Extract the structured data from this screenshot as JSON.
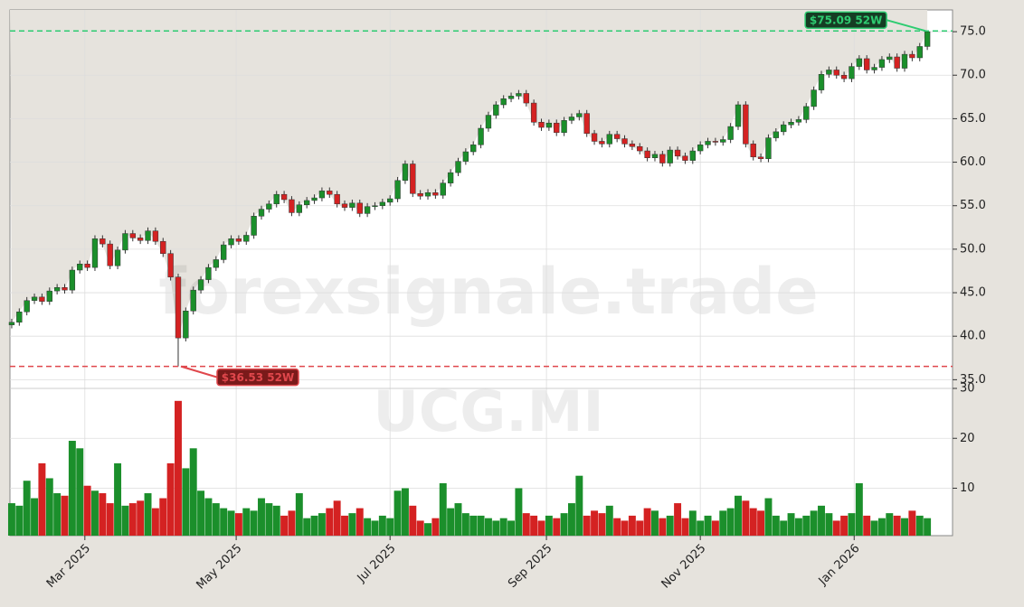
{
  "chart_data": {
    "type": "candlestick",
    "x": [
      0,
      3,
      6,
      9,
      12,
      15,
      18,
      21,
      24,
      27,
      30,
      33,
      36,
      39,
      42,
      45,
      48,
      51,
      54,
      57,
      60,
      63,
      66,
      69,
      72,
      75,
      78,
      81,
      84,
      87,
      90,
      93,
      96,
      99,
      102,
      105,
      108,
      111,
      114,
      117,
      120,
      123,
      126,
      129,
      132,
      135,
      138,
      141,
      144,
      147,
      150,
      153,
      156,
      159,
      162,
      165,
      168,
      171,
      174,
      177,
      180,
      183,
      186,
      189,
      192,
      195,
      198,
      201,
      204,
      207,
      210,
      213,
      216,
      219,
      222,
      225,
      228,
      231,
      234,
      237,
      240,
      243,
      246,
      249,
      252,
      255,
      258,
      261,
      264,
      267,
      270,
      273,
      276,
      279,
      282,
      285,
      288,
      291,
      294,
      297,
      300,
      303,
      306,
      309,
      312,
      315,
      318,
      321,
      324,
      327,
      330,
      333,
      336,
      339,
      342,
      345,
      348,
      351,
      354,
      357,
      360,
      363
    ],
    "open": [
      41.3,
      41.6,
      42.8,
      44.1,
      44.5,
      44.0,
      45.2,
      45.6,
      45.3,
      47.6,
      48.3,
      47.9,
      51.2,
      50.6,
      48.1,
      49.9,
      51.8,
      51.3,
      51.0,
      52.1,
      50.9,
      49.5,
      46.8,
      39.8,
      42.9,
      45.3,
      46.5,
      47.9,
      48.8,
      50.5,
      51.2,
      50.9,
      51.6,
      53.8,
      54.6,
      55.2,
      56.3,
      55.7,
      54.2,
      55.1,
      55.6,
      55.9,
      56.7,
      56.3,
      55.2,
      54.8,
      55.3,
      54.1,
      54.9,
      55.0,
      55.4,
      55.8,
      57.9,
      59.8,
      56.4,
      56.1,
      56.5,
      56.2,
      57.6,
      58.8,
      60.1,
      61.2,
      62.0,
      63.9,
      65.4,
      66.6,
      67.3,
      67.6,
      67.9,
      66.8,
      64.6,
      64.0,
      64.5,
      63.4,
      64.8,
      65.2,
      65.6,
      63.3,
      62.4,
      62.1,
      63.2,
      62.7,
      62.1,
      61.8,
      61.3,
      60.5,
      60.9,
      59.9,
      61.4,
      60.7,
      60.2,
      61.3,
      62.0,
      62.4,
      62.3,
      62.6,
      64.1,
      66.6,
      62.1,
      60.6,
      60.4,
      62.8,
      63.5,
      64.3,
      64.6,
      64.9,
      66.4,
      68.3,
      70.1,
      70.6,
      70.0,
      69.6,
      71.0,
      71.9,
      70.6,
      70.9,
      71.8,
      72.1,
      70.8,
      72.4,
      72.0,
      73.3
    ],
    "high": [
      42.0,
      43.2,
      44.5,
      44.9,
      44.9,
      45.6,
      46.0,
      46.0,
      48.0,
      48.7,
      48.7,
      51.6,
      51.6,
      51.0,
      50.3,
      52.2,
      52.2,
      51.7,
      52.5,
      52.5,
      51.3,
      49.9,
      47.2,
      43.3,
      45.7,
      46.9,
      48.3,
      49.2,
      50.9,
      51.6,
      51.6,
      52.0,
      54.2,
      55.0,
      55.6,
      56.7,
      56.7,
      56.1,
      55.5,
      56.0,
      56.3,
      57.1,
      57.1,
      56.7,
      55.6,
      55.7,
      55.7,
      55.3,
      55.4,
      55.8,
      56.2,
      58.3,
      60.2,
      60.2,
      56.8,
      56.9,
      56.9,
      58.0,
      59.2,
      60.5,
      61.6,
      62.4,
      64.3,
      65.8,
      67.0,
      67.7,
      68.0,
      68.3,
      68.3,
      67.2,
      65.0,
      64.9,
      64.9,
      65.2,
      65.6,
      66.0,
      66.0,
      63.7,
      62.8,
      63.6,
      63.6,
      63.1,
      62.5,
      62.2,
      61.7,
      61.3,
      61.3,
      61.8,
      61.8,
      61.1,
      61.7,
      62.4,
      62.8,
      62.8,
      63.0,
      64.5,
      67.0,
      67.0,
      62.5,
      61.0,
      63.2,
      63.9,
      64.7,
      65.0,
      65.3,
      66.8,
      68.7,
      70.5,
      71.0,
      71.0,
      70.4,
      71.4,
      72.3,
      72.3,
      71.3,
      72.2,
      72.5,
      72.5,
      72.8,
      72.8,
      73.7,
      75.09
    ],
    "low": [
      40.9,
      41.2,
      42.4,
      43.7,
      43.6,
      43.6,
      44.8,
      44.9,
      44.9,
      47.2,
      47.5,
      47.5,
      50.2,
      47.7,
      47.7,
      49.5,
      50.9,
      50.6,
      50.6,
      50.5,
      49.1,
      46.4,
      36.53,
      39.4,
      42.5,
      44.9,
      46.1,
      47.5,
      48.4,
      50.1,
      50.5,
      50.5,
      51.2,
      53.4,
      54.2,
      54.8,
      55.3,
      53.8,
      53.8,
      54.7,
      55.2,
      55.5,
      55.9,
      54.8,
      54.4,
      54.4,
      53.7,
      53.7,
      54.5,
      54.6,
      55.0,
      55.4,
      57.5,
      56.0,
      55.7,
      55.7,
      55.8,
      55.8,
      57.2,
      58.4,
      59.7,
      60.8,
      61.6,
      63.5,
      65.0,
      66.2,
      66.9,
      67.2,
      66.4,
      64.2,
      63.6,
      63.6,
      63.0,
      63.0,
      64.4,
      64.8,
      62.9,
      62.0,
      61.7,
      61.7,
      62.3,
      61.7,
      61.4,
      60.9,
      60.1,
      60.1,
      59.5,
      59.5,
      60.3,
      59.8,
      59.8,
      60.9,
      61.6,
      61.9,
      61.9,
      62.2,
      63.7,
      61.7,
      60.2,
      60.0,
      60.0,
      62.4,
      63.1,
      63.9,
      64.2,
      64.5,
      66.0,
      67.9,
      69.7,
      69.6,
      69.2,
      69.2,
      70.6,
      70.2,
      70.2,
      70.5,
      71.4,
      70.4,
      70.4,
      71.6,
      71.6,
      72.9
    ],
    "close": [
      41.6,
      42.8,
      44.1,
      44.5,
      44.0,
      45.2,
      45.6,
      45.3,
      47.6,
      48.3,
      47.9,
      51.2,
      50.6,
      48.1,
      49.9,
      51.8,
      51.3,
      51.0,
      52.1,
      50.9,
      49.5,
      46.8,
      39.8,
      42.9,
      45.3,
      46.5,
      47.9,
      48.8,
      50.5,
      51.2,
      50.9,
      51.6,
      53.8,
      54.6,
      55.2,
      56.3,
      55.7,
      54.2,
      55.1,
      55.6,
      55.9,
      56.7,
      56.3,
      55.2,
      54.8,
      55.3,
      54.1,
      54.9,
      55.0,
      55.4,
      55.8,
      57.9,
      59.8,
      56.4,
      56.1,
      56.5,
      56.2,
      57.6,
      58.8,
      60.1,
      61.2,
      62.0,
      63.9,
      65.4,
      66.6,
      67.3,
      67.6,
      67.9,
      66.8,
      64.6,
      64.0,
      64.5,
      63.4,
      64.8,
      65.2,
      65.6,
      63.3,
      62.4,
      62.1,
      63.2,
      62.7,
      62.1,
      61.8,
      61.3,
      60.5,
      60.9,
      59.9,
      61.4,
      60.7,
      60.2,
      61.3,
      62.0,
      62.4,
      62.3,
      62.6,
      64.1,
      66.6,
      62.1,
      60.6,
      60.4,
      62.8,
      63.5,
      64.3,
      64.6,
      64.9,
      66.4,
      68.3,
      70.1,
      70.6,
      70.0,
      69.6,
      71.0,
      71.9,
      70.6,
      70.9,
      71.8,
      72.1,
      70.8,
      72.4,
      72.0,
      73.3,
      75.0
    ],
    "volume": [
      7.0,
      6.5,
      11.5,
      8.0,
      15.0,
      12.0,
      9.0,
      8.5,
      19.5,
      18.0,
      10.5,
      9.5,
      9.0,
      7.0,
      15.0,
      6.5,
      7.0,
      7.5,
      9.0,
      6.0,
      8.0,
      15.0,
      27.5,
      14.0,
      18.0,
      9.5,
      8.0,
      7.0,
      6.0,
      5.5,
      5.0,
      6.0,
      5.5,
      8.0,
      7.0,
      6.5,
      4.5,
      5.5,
      9.0,
      4.0,
      4.5,
      5.0,
      6.0,
      7.5,
      4.5,
      5.0,
      6.0,
      4.0,
      3.5,
      4.5,
      4.0,
      9.5,
      10.0,
      6.5,
      3.5,
      3.0,
      4.0,
      11.0,
      6.0,
      7.0,
      5.0,
      4.5,
      4.5,
      4.0,
      3.5,
      4.0,
      3.5,
      10.0,
      5.0,
      4.5,
      3.5,
      4.5,
      4.0,
      5.0,
      7.0,
      12.5,
      4.5,
      5.5,
      5.0,
      6.5,
      4.0,
      3.5,
      4.5,
      3.5,
      6.0,
      5.5,
      4.0,
      4.5,
      7.0,
      4.0,
      5.5,
      3.5,
      4.5,
      3.5,
      5.5,
      6.0,
      8.5,
      7.5,
      6.0,
      5.5,
      8.0,
      4.5,
      3.5,
      5.0,
      4.0,
      4.5,
      5.5,
      6.5,
      5.0,
      3.5,
      4.5,
      5.0,
      11.0,
      4.5,
      3.5,
      4.0,
      5.0,
      4.5,
      4.0,
      5.5,
      4.5,
      4.0
    ],
    "up_color": "#1b8f2b",
    "down_color": "#d42222",
    "xlim": [
      -0.7,
      373
    ],
    "xticks": [
      {
        "value": 29,
        "label": "Mar 2025"
      },
      {
        "value": 89,
        "label": "May 2025"
      },
      {
        "value": 150,
        "label": "Jul 2025"
      },
      {
        "value": 212,
        "label": "Sep 2025"
      },
      {
        "value": 273,
        "label": "Nov 2025"
      },
      {
        "value": 334,
        "label": "Jan 2026"
      }
    ],
    "ylim": [
      34,
      77.5
    ],
    "yticks": [
      {
        "value": 35,
        "label": "35.0"
      },
      {
        "value": 40,
        "label": "40.0"
      },
      {
        "value": 45,
        "label": "45.0"
      },
      {
        "value": 50,
        "label": "50.0"
      },
      {
        "value": 55,
        "label": "55.0"
      },
      {
        "value": 60,
        "label": "60.0"
      },
      {
        "value": 65,
        "label": "65.0"
      },
      {
        "value": 70,
        "label": "70.0"
      },
      {
        "value": 75,
        "label": "75.0"
      }
    ],
    "volume_ylim": [
      0.5,
      30
    ],
    "volume_yticks": [
      10,
      20,
      30
    ],
    "grid": true,
    "annotations": [
      {
        "text": "$75.09 52W",
        "value": 75.09,
        "color": "#2ecc71"
      },
      {
        "text": "$36.53 52W",
        "value": 36.53,
        "color": "#e0474c"
      }
    ],
    "watermarks": [
      "forexsignale.trade",
      "UCG.MI"
    ]
  }
}
